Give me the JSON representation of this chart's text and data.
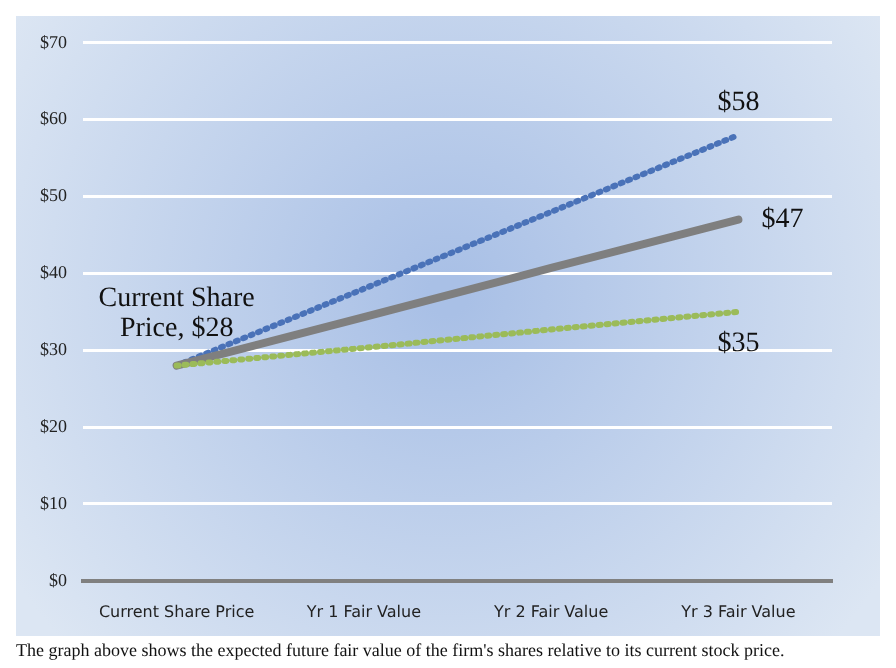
{
  "chart_data": {
    "type": "line",
    "categories": [
      "Current Share Price",
      "Yr 1 Fair Value",
      "Yr 2 Fair Value",
      "Yr 3 Fair Value"
    ],
    "series": [
      {
        "color": "#4a72b8",
        "line_style": "dotted",
        "values": [
          28,
          38,
          48,
          58
        ]
      },
      {
        "color": "#7f7f7f",
        "line_style": "solid",
        "values": [
          28,
          34.3,
          40.7,
          47
        ]
      },
      {
        "color": "#9bbb59",
        "line_style": "dotted",
        "values": [
          28,
          30.3,
          32.7,
          35
        ]
      }
    ],
    "ylim": [
      0,
      70
    ],
    "yticks": [
      {
        "value": 0,
        "label": "$0"
      },
      {
        "value": 10,
        "label": "$10"
      },
      {
        "value": 20,
        "label": "$20"
      },
      {
        "value": 30,
        "label": "$30"
      },
      {
        "value": 40,
        "label": "$40"
      },
      {
        "value": 50,
        "label": "$50"
      },
      {
        "value": 60,
        "label": "$60"
      },
      {
        "value": 70,
        "label": "$70"
      }
    ],
    "grid": "y",
    "legend": false,
    "marker": "none",
    "annotations": [
      {
        "text": "Current Share Price, $28",
        "x": "Current Share Price",
        "y": 28
      },
      {
        "text": "$58",
        "x": "Yr 3 Fair Value",
        "y": 58
      },
      {
        "text": "$47",
        "x": "Yr 3 Fair Value",
        "y": 47
      },
      {
        "text": "$35",
        "x": "Yr 3 Fair Value",
        "y": 35
      },
      "The graph above shows the expected future fair value of the firm's shares relative to its current stock price."
    ]
  }
}
